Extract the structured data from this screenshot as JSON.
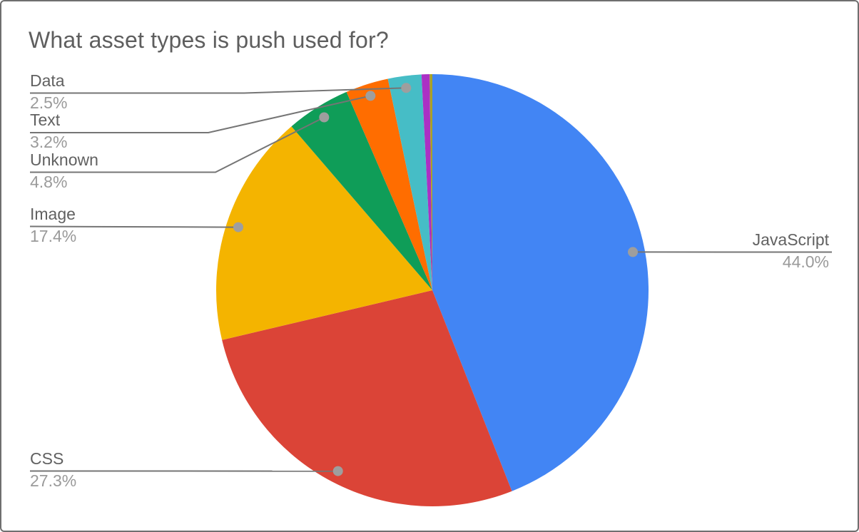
{
  "window": {
    "background": "#ffffff",
    "border_color": "#6f6f6f"
  },
  "chart_data": {
    "type": "pie",
    "title": "What asset types is push used for?",
    "direction": "clockwise",
    "start_angle_deg": 0,
    "legend": "callout-labels",
    "slices": [
      {
        "label": "JavaScript",
        "value": 44.0,
        "display_pct": "44.0%",
        "color": "#4285F4"
      },
      {
        "label": "CSS",
        "value": 27.3,
        "display_pct": "27.3%",
        "color": "#DB4437"
      },
      {
        "label": "Image",
        "value": 17.4,
        "display_pct": "17.4%",
        "color": "#F4B400"
      },
      {
        "label": "Unknown",
        "value": 4.8,
        "display_pct": "4.8%",
        "color": "#0F9D58"
      },
      {
        "label": "Text",
        "value": 3.2,
        "display_pct": "3.2%",
        "color": "#FF6D00"
      },
      {
        "label": "Data",
        "value": 2.5,
        "display_pct": "2.5%",
        "color": "#46BDC6"
      },
      {
        "label": "",
        "value": 0.6,
        "display_pct": "",
        "color": "#AB30C4"
      },
      {
        "label": "",
        "value": 0.2,
        "display_pct": "",
        "color": "#A8A227"
      }
    ]
  },
  "style": {
    "title_color": "#5e5e5e",
    "label_name_color": "#616161",
    "label_pct_color": "#9a9a9a",
    "callout_line_color": "#757575",
    "callout_dot_color": "#9e9e9e"
  }
}
